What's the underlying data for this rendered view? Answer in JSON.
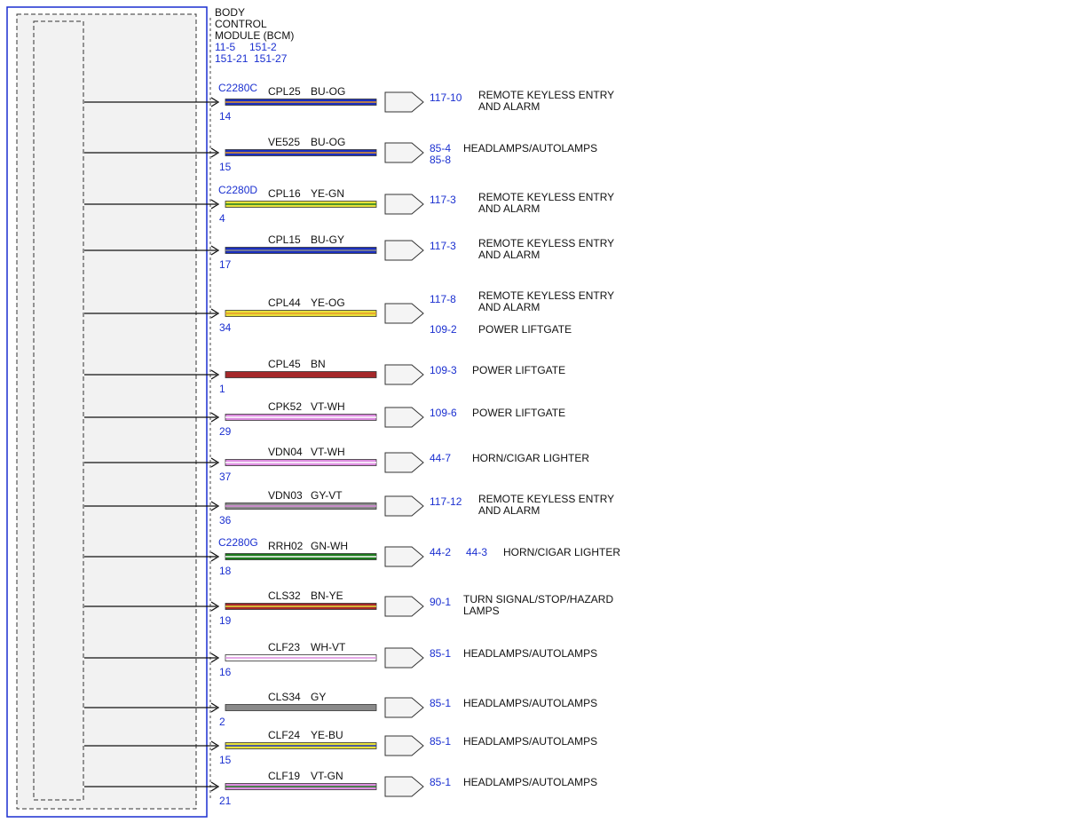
{
  "module": {
    "title_lines": [
      "BODY",
      "CONTROL",
      "MODULE (BCM)"
    ],
    "refs_line1": [
      "11-5",
      "151-2"
    ],
    "refs_line2": [
      "151-21",
      "151-27"
    ]
  },
  "colors": {
    "BU": "#1b2fbf",
    "YE": "#e8e23a",
    "BN": "#a5282a",
    "VT": "#dd8ee0",
    "GY": "#8a8a8a",
    "GN": "#1f7a1f",
    "WH": "#ffffff",
    "OG": "#e8962a",
    "module_border": "#1a2fd0",
    "module_fill": "#f2f2f2",
    "ref_blue": "#1a2fd0"
  },
  "circuits": [
    {
      "connector": "C2280C",
      "pin": "14",
      "circuit": "CPL25",
      "color_code": "BU-OG",
      "base": "BU",
      "stripe": "OG",
      "refs": [
        "117-10"
      ],
      "dest_lines": [
        "REMOTE KEYLESS ENTRY",
        "AND ALARM"
      ]
    },
    {
      "connector": "",
      "pin": "15",
      "circuit": "VE525",
      "color_code": "BU-OG",
      "base": "BU",
      "stripe": "OG",
      "refs": [
        "85-4",
        "85-8"
      ],
      "dest_lines": [
        "HEADLAMPS/AUTOLAMPS"
      ]
    },
    {
      "connector": "C2280D",
      "pin": "4",
      "circuit": "CPL16",
      "color_code": "YE-GN",
      "base": "YE",
      "stripe": "GN",
      "refs": [
        "117-3"
      ],
      "dest_lines": [
        "REMOTE KEYLESS ENTRY",
        "AND ALARM"
      ]
    },
    {
      "connector": "",
      "pin": "17",
      "circuit": "CPL15",
      "color_code": "BU-GY",
      "base": "BU",
      "stripe": "GY",
      "refs": [
        "117-3"
      ],
      "dest_lines": [
        "REMOTE KEYLESS ENTRY",
        "AND ALARM"
      ]
    },
    {
      "connector": "",
      "pin": "34",
      "circuit": "CPL44",
      "color_code": "YE-OG",
      "base": "YE",
      "stripe": "OG",
      "refs": [
        "117-8"
      ],
      "dest_lines": [
        "REMOTE KEYLESS ENTRY",
        "AND ALARM"
      ],
      "extra_ref": "109-2",
      "extra_dest": "POWER LIFTGATE"
    },
    {
      "connector": "",
      "pin": "1",
      "circuit": "CPL45",
      "color_code": "BN",
      "base": "BN",
      "stripe": "",
      "refs": [
        "109-3"
      ],
      "dest_lines": [
        "POWER LIFTGATE"
      ]
    },
    {
      "connector": "",
      "pin": "29",
      "circuit": "CPK52",
      "color_code": "VT-WH",
      "base": "VT",
      "stripe": "WH",
      "refs": [
        "109-6"
      ],
      "dest_lines": [
        "POWER LIFTGATE"
      ]
    },
    {
      "connector": "",
      "pin": "37",
      "circuit": "VDN04",
      "color_code": "VT-WH",
      "base": "VT",
      "stripe": "WH",
      "refs": [
        "44-7"
      ],
      "dest_lines": [
        "HORN/CIGAR LIGHTER"
      ]
    },
    {
      "connector": "",
      "pin": "36",
      "circuit": "VDN03",
      "color_code": "GY-VT",
      "base": "GY",
      "stripe": "VT",
      "refs": [
        "117-12"
      ],
      "dest_lines": [
        "REMOTE KEYLESS ENTRY",
        "AND ALARM"
      ]
    },
    {
      "connector": "C2280G",
      "pin": "18",
      "circuit": "RRH02",
      "color_code": "GN-WH",
      "base": "GN",
      "stripe": "WH",
      "refs": [
        "44-2",
        "44-3"
      ],
      "dest_lines": [
        "HORN/CIGAR LIGHTER"
      ],
      "refs_inline": true
    },
    {
      "connector": "",
      "pin": "19",
      "circuit": "CLS32",
      "color_code": "BN-YE",
      "base": "BN",
      "stripe": "YE",
      "refs": [
        "90-1"
      ],
      "dest_lines": [
        "TURN SIGNAL/STOP/HAZARD",
        "LAMPS"
      ]
    },
    {
      "connector": "",
      "pin": "16",
      "circuit": "CLF23",
      "color_code": "WH-VT",
      "base": "WH",
      "stripe": "VT",
      "refs": [
        "85-1"
      ],
      "dest_lines": [
        "HEADLAMPS/AUTOLAMPS"
      ]
    },
    {
      "connector": "",
      "pin": "2",
      "circuit": "CLS34",
      "color_code": "GY",
      "base": "GY",
      "stripe": "",
      "refs": [
        "85-1"
      ],
      "dest_lines": [
        "HEADLAMPS/AUTOLAMPS"
      ]
    },
    {
      "connector": "",
      "pin": "15",
      "circuit": "CLF24",
      "color_code": "YE-BU",
      "base": "YE",
      "stripe": "BU",
      "refs": [
        "85-1"
      ],
      "dest_lines": [
        "HEADLAMPS/AUTOLAMPS"
      ]
    },
    {
      "connector": "",
      "pin": "21",
      "circuit": "CLF19",
      "color_code": "VT-GN",
      "base": "VT",
      "stripe": "GN",
      "refs": [
        "85-1"
      ],
      "dest_lines": [
        "HEADLAMPS/AUTOLAMPS"
      ]
    }
  ]
}
